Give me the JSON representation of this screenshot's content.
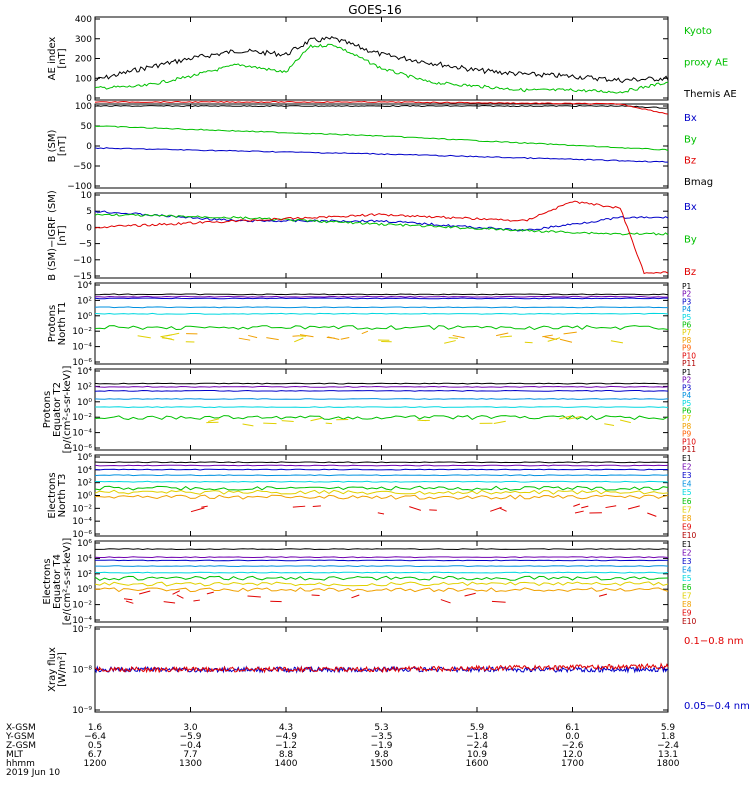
{
  "title": "GOES-16",
  "colors": {
    "black": "#000000",
    "red": "#e00000",
    "green": "#00c000",
    "blue": "#0000c8",
    "cyan": "#00d8e0",
    "yellow": "#e0d000",
    "orange": "#f0a000",
    "lime": "#80e000",
    "purple": "#7000b0",
    "darkred": "#b00000"
  },
  "panels": [
    {
      "ylabel": [
        "AE index",
        "[nT]"
      ],
      "yticks": [
        "400",
        "300",
        "200",
        "100",
        "0"
      ],
      "legend": [
        {
          "text": "Kyoto",
          "color": "#00c000"
        },
        {
          "text": "proxy AE",
          "color": "#00c000"
        },
        {
          "text": "Themis AE",
          "color": "#000000"
        }
      ]
    },
    {
      "ylabel": [
        "B (SM)",
        "[nT]"
      ],
      "yticks": [
        "100",
        "50",
        "0",
        "−50",
        "−100"
      ],
      "legend": [
        {
          "text": "Bx",
          "color": "#0000c8"
        },
        {
          "text": "By",
          "color": "#00c000"
        },
        {
          "text": "Bz",
          "color": "#e00000"
        },
        {
          "text": "Bmag",
          "color": "#000000"
        }
      ]
    },
    {
      "ylabel": [
        "B (SM)−IGRF (SM)",
        "[nT]"
      ],
      "yticks": [
        "10",
        "5",
        "0",
        "−5",
        "−10",
        "−15"
      ],
      "legend": [
        {
          "text": "Bx",
          "color": "#0000c8"
        },
        {
          "text": "By",
          "color": "#00c000"
        },
        {
          "text": "Bz",
          "color": "#e00000"
        }
      ]
    },
    {
      "ylabel": [
        "Protons",
        "North T1"
      ],
      "yticks": [
        "10⁴",
        "10²",
        "10⁰",
        "10⁻²",
        "10⁻⁴",
        "10⁻⁶"
      ],
      "legend": [
        {
          "text": "P1",
          "color": "#000000"
        },
        {
          "text": "P2",
          "color": "#7000b0"
        },
        {
          "text": "P3",
          "color": "#0000c8"
        },
        {
          "text": "P4",
          "color": "#0090e0"
        },
        {
          "text": "P5",
          "color": "#00d8e0"
        },
        {
          "text": "P6",
          "color": "#00c000"
        },
        {
          "text": "P7",
          "color": "#e0d000"
        },
        {
          "text": "P8",
          "color": "#f0a000"
        },
        {
          "text": "P9",
          "color": "#ff6000"
        },
        {
          "text": "P10",
          "color": "#e00000"
        },
        {
          "text": "P11",
          "color": "#b00000"
        }
      ]
    },
    {
      "ylabel": [
        "Protons",
        "Equator T2",
        "[p/(cm²-s-sr-keV)]"
      ],
      "yticks": [
        "10⁴",
        "10²",
        "10⁰",
        "10⁻²",
        "10⁻⁴",
        "10⁻⁶"
      ],
      "legend": [
        {
          "text": "P1",
          "color": "#000000"
        },
        {
          "text": "P2",
          "color": "#7000b0"
        },
        {
          "text": "P3",
          "color": "#0000c8"
        },
        {
          "text": "P4",
          "color": "#0090e0"
        },
        {
          "text": "P5",
          "color": "#00d8e0"
        },
        {
          "text": "P6",
          "color": "#00c000"
        },
        {
          "text": "P7",
          "color": "#e0d000"
        },
        {
          "text": "P8",
          "color": "#f0a000"
        },
        {
          "text": "P9",
          "color": "#ff6000"
        },
        {
          "text": "P10",
          "color": "#e00000"
        },
        {
          "text": "P11",
          "color": "#b00000"
        }
      ]
    },
    {
      "ylabel": [
        "Electrons",
        "North T3"
      ],
      "yticks": [
        "10⁶",
        "10⁴",
        "10²",
        "10⁰",
        "10⁻²",
        "10⁻⁴",
        "10⁻⁶"
      ],
      "legend": [
        {
          "text": "E1",
          "color": "#000000"
        },
        {
          "text": "E2",
          "color": "#7000b0"
        },
        {
          "text": "E3",
          "color": "#0000c8"
        },
        {
          "text": "E4",
          "color": "#0090e0"
        },
        {
          "text": "E5",
          "color": "#00d8e0"
        },
        {
          "text": "E6",
          "color": "#00c000"
        },
        {
          "text": "E7",
          "color": "#e0d000"
        },
        {
          "text": "E8",
          "color": "#f0a000"
        },
        {
          "text": "E9",
          "color": "#e00000"
        },
        {
          "text": "E10",
          "color": "#b00000"
        }
      ]
    },
    {
      "ylabel": [
        "Electrons",
        "Equator T4",
        "[e/(cm²-s-sr-keV)]"
      ],
      "yticks": [
        "10⁶",
        "10⁴",
        "10²",
        "10⁰",
        "10⁻²",
        "10⁻⁴"
      ],
      "legend": [
        {
          "text": "E1",
          "color": "#000000"
        },
        {
          "text": "E2",
          "color": "#7000b0"
        },
        {
          "text": "E3",
          "color": "#0000c8"
        },
        {
          "text": "E4",
          "color": "#0090e0"
        },
        {
          "text": "E5",
          "color": "#00d8e0"
        },
        {
          "text": "E6",
          "color": "#00c000"
        },
        {
          "text": "E7",
          "color": "#e0d000"
        },
        {
          "text": "E8",
          "color": "#f0a000"
        },
        {
          "text": "E9",
          "color": "#e00000"
        },
        {
          "text": "E10",
          "color": "#b00000"
        }
      ]
    },
    {
      "ylabel": [
        "Xray flux",
        "[W/m²]"
      ],
      "yticks": [
        "10⁻⁷",
        "10⁻⁸",
        "10⁻⁹"
      ],
      "legend": [
        {
          "text": "0.1−0.8 nm",
          "color": "#e00000"
        },
        {
          "text": "0.05−0.4 nm",
          "color": "#0000c8"
        }
      ]
    }
  ],
  "ephemeris": {
    "labels": [
      "X-GSM",
      "Y-GSM",
      "Z-GSM",
      "MLT",
      "hhmm"
    ],
    "columns": [
      [
        "1.6",
        "−6.4",
        "0.5",
        "6.7",
        "1200"
      ],
      [
        "3.0",
        "−5.9",
        "−0.4",
        "7.7",
        "1300"
      ],
      [
        "4.3",
        "−4.9",
        "−1.2",
        "8.8",
        "1400"
      ],
      [
        "5.3",
        "−3.5",
        "−1.9",
        "9.8",
        "1500"
      ],
      [
        "5.9",
        "−1.8",
        "−2.4",
        "10.9",
        "1600"
      ],
      [
        "6.1",
        "0.0",
        "−2.6",
        "12.0",
        "1700"
      ],
      [
        "5.9",
        "1.8",
        "−2.4",
        "13.1",
        "1800"
      ]
    ],
    "date": "2019 Jun 10"
  },
  "chart_data": {
    "type": "line",
    "title": "GOES-16",
    "x_time_hhmm": [
      "1200",
      "1300",
      "1400",
      "1500",
      "1600",
      "1700",
      "1800"
    ],
    "series": [
      {
        "name": "Themis AE",
        "panel": "AE index",
        "x": [
          "1200",
          "1230",
          "1300",
          "1330",
          "1400",
          "1415",
          "1430",
          "1500",
          "1530",
          "1600",
          "1630",
          "1700",
          "1730",
          "1800"
        ],
        "values": [
          90,
          150,
          200,
          240,
          220,
          290,
          300,
          220,
          180,
          140,
          120,
          110,
          90,
          100
        ]
      },
      {
        "name": "Kyoto proxy AE",
        "panel": "AE index",
        "x": [
          "1200",
          "1230",
          "1300",
          "1330",
          "1400",
          "1415",
          "1430",
          "1500",
          "1530",
          "1600",
          "1630",
          "1700",
          "1730",
          "1800"
        ],
        "values": [
          50,
          60,
          110,
          170,
          130,
          260,
          270,
          150,
          80,
          60,
          40,
          40,
          30,
          80
        ]
      },
      {
        "name": "Bmag",
        "panel": "B (SM)",
        "x": [
          "1200",
          "1500",
          "1730",
          "1800"
        ],
        "values": [
          100,
          100,
          100,
          95
        ]
      },
      {
        "name": "Bz",
        "panel": "B (SM)",
        "x": [
          "1200",
          "1500",
          "1730",
          "1800"
        ],
        "values": [
          110,
          110,
          105,
          80
        ]
      },
      {
        "name": "By",
        "panel": "B (SM)",
        "x": [
          "1200",
          "1500",
          "1800"
        ],
        "values": [
          50,
          25,
          -10
        ]
      },
      {
        "name": "Bx",
        "panel": "B (SM)",
        "x": [
          "1200",
          "1500",
          "1800"
        ],
        "values": [
          -5,
          -20,
          -40
        ]
      },
      {
        "name": "Bx",
        "panel": "B (SM)-IGRF (SM)",
        "x": [
          "1200",
          "1330",
          "1500",
          "1630",
          "1730",
          "1800"
        ],
        "values": [
          5,
          2,
          2,
          -1,
          3,
          3
        ]
      },
      {
        "name": "By",
        "panel": "B (SM)-IGRF (SM)",
        "x": [
          "1200",
          "1330",
          "1500",
          "1630",
          "1730",
          "1800"
        ],
        "values": [
          4,
          3,
          1,
          -1,
          -2,
          -2
        ]
      },
      {
        "name": "Bz",
        "panel": "B (SM)-IGRF (SM)",
        "x": [
          "1200",
          "1330",
          "1500",
          "1630",
          "1700",
          "1730",
          "1745",
          "1800"
        ],
        "values": [
          0,
          2,
          4,
          2,
          8,
          6,
          -14,
          -14
        ]
      },
      {
        "name": "0.1-0.8 nm",
        "panel": "Xray flux",
        "x": [
          "1200",
          "1500",
          "1800"
        ],
        "values": [
          1e-08,
          1e-08,
          1.2e-08
        ]
      },
      {
        "name": "0.05-0.4 nm",
        "panel": "Xray flux",
        "x": [
          "1200",
          "1500",
          "1800"
        ],
        "values": [
          1e-08,
          1e-08,
          1e-08
        ]
      }
    ]
  }
}
